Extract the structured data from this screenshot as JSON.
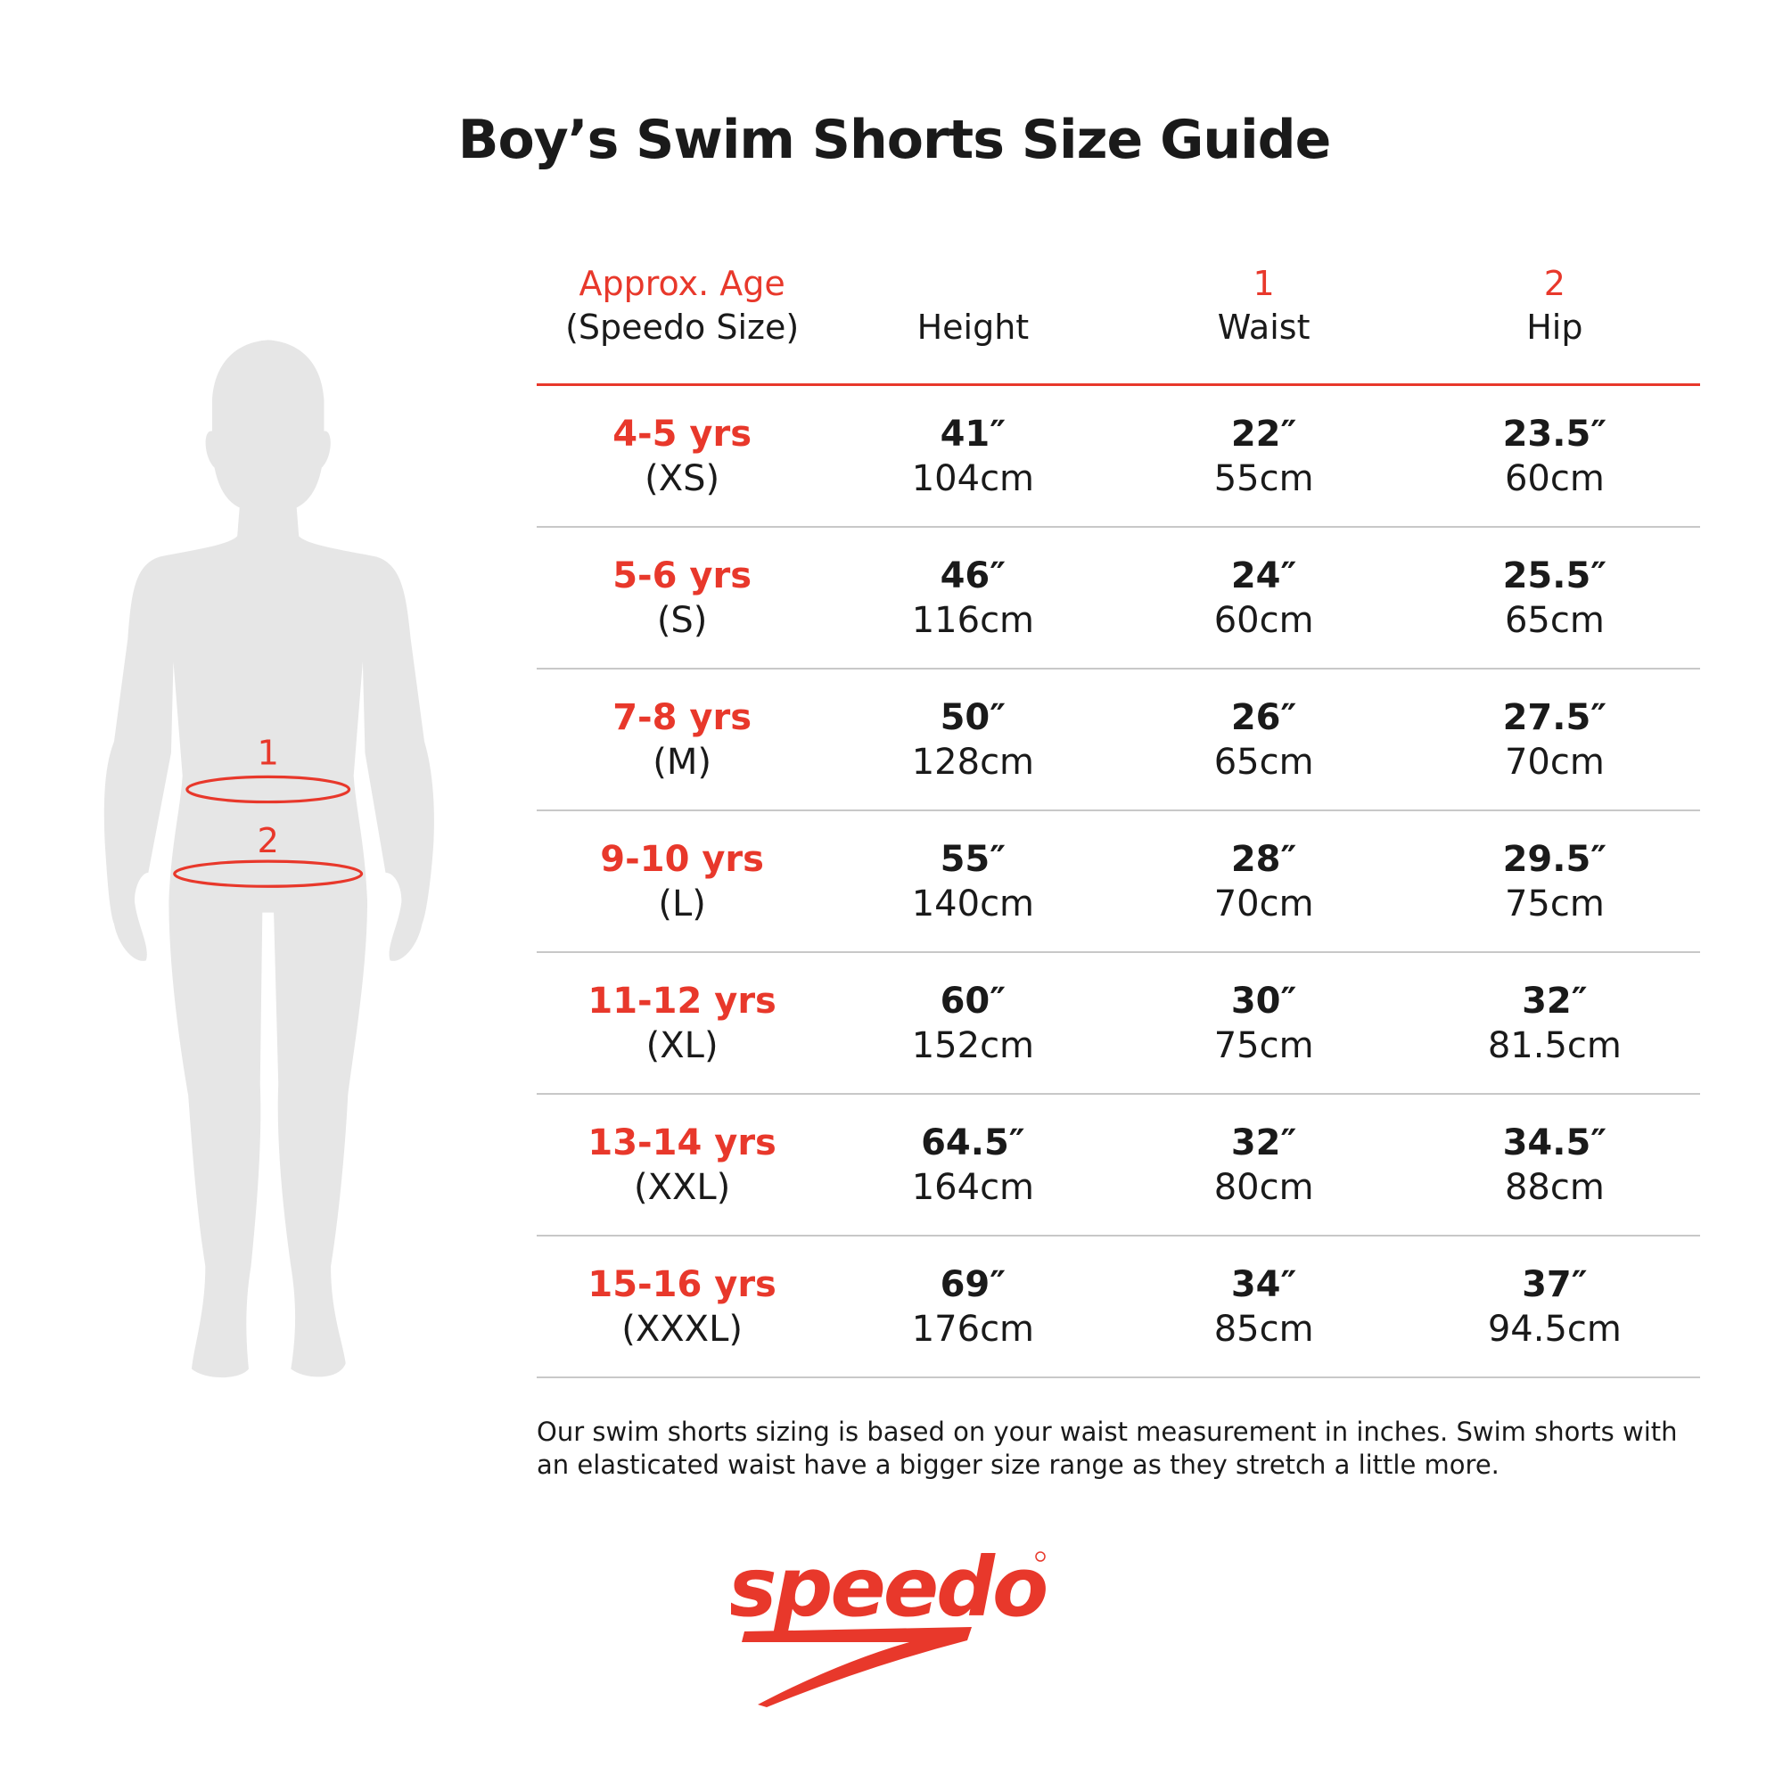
{
  "title": "Boy’s Swim Shorts Size Guide",
  "figure": {
    "marker_1": "1",
    "marker_2": "2",
    "marker_color": "#e8382b",
    "silhouette_color": "#e6e6e6"
  },
  "table": {
    "headers": [
      {
        "top": "Approx. Age",
        "bottom": "(Speedo Size)"
      },
      {
        "top": "",
        "bottom": "Height"
      },
      {
        "top": "1",
        "bottom": "Waist"
      },
      {
        "top": "2",
        "bottom": "Hip"
      }
    ],
    "rows": [
      {
        "age": "4-5 yrs",
        "size": "(XS)",
        "height_in": "41″",
        "height_cm": "104cm",
        "waist_in": "22″",
        "waist_cm": "55cm",
        "hip_in": "23.5″",
        "hip_cm": "60cm"
      },
      {
        "age": "5-6 yrs",
        "size": "(S)",
        "height_in": "46″",
        "height_cm": "116cm",
        "waist_in": "24″",
        "waist_cm": "60cm",
        "hip_in": "25.5″",
        "hip_cm": "65cm"
      },
      {
        "age": "7-8 yrs",
        "size": "(M)",
        "height_in": "50″",
        "height_cm": "128cm",
        "waist_in": "26″",
        "waist_cm": "65cm",
        "hip_in": "27.5″",
        "hip_cm": "70cm"
      },
      {
        "age": "9-10 yrs",
        "size": "(L)",
        "height_in": "55″",
        "height_cm": "140cm",
        "waist_in": "28″",
        "waist_cm": "70cm",
        "hip_in": "29.5″",
        "hip_cm": "75cm"
      },
      {
        "age": "11-12 yrs",
        "size": "(XL)",
        "height_in": "60″",
        "height_cm": "152cm",
        "waist_in": "30″",
        "waist_cm": "75cm",
        "hip_in": "32″",
        "hip_cm": "81.5cm"
      },
      {
        "age": "13-14 yrs",
        "size": "(XXL)",
        "height_in": "64.5″",
        "height_cm": "164cm",
        "waist_in": "32″",
        "waist_cm": "80cm",
        "hip_in": "34.5″",
        "hip_cm": "88cm"
      },
      {
        "age": "15-16 yrs",
        "size": "(XXXL)",
        "height_in": "69″",
        "height_cm": "176cm",
        "waist_in": "34″",
        "waist_cm": "85cm",
        "hip_in": "37″",
        "hip_cm": "94.5cm"
      }
    ]
  },
  "note": "Our swim shorts sizing is based on your waist measurement in inches. Swim shorts with an elasticated waist have a bigger size range as they stretch a little more.",
  "logo": {
    "text": "speedo",
    "brand_color": "#e8382b"
  }
}
